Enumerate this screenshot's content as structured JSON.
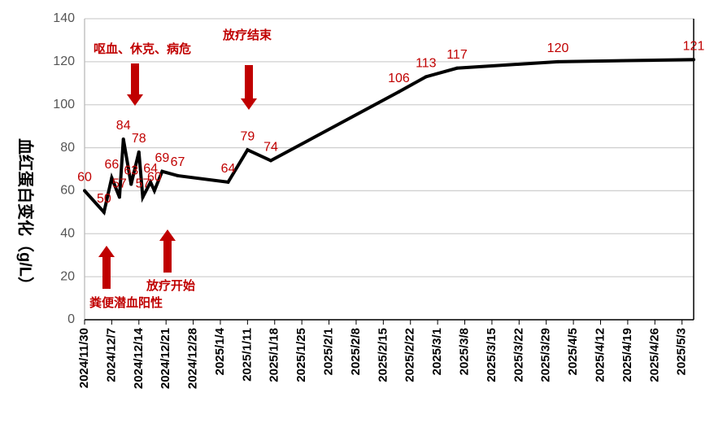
{
  "chart_data": {
    "type": "line",
    "y_label": "血红蛋白变化（g/L）",
    "x": [
      "2024/11/30",
      "2024/12/5",
      "2024/12/7",
      "2024/12/9",
      "2024/12/10",
      "2024/12/12",
      "2024/12/14",
      "2024/12/15",
      "2024/12/17",
      "2024/12/18",
      "2024/12/20",
      "2024/12/24",
      "2025/1/6",
      "2025/1/11",
      "2025/1/17",
      "2025/2/19",
      "2025/2/26",
      "2025/3/6",
      "2025/4/1",
      "2025/5/6"
    ],
    "values": [
      60,
      50,
      66,
      57,
      84,
      63,
      78,
      57,
      64,
      60,
      69,
      67,
      64,
      79,
      74,
      106,
      113,
      117,
      120,
      121
    ],
    "color": "#000000",
    "label_color": "#c00000",
    "xlim": [
      "2024/11/30",
      "2025/5/6"
    ],
    "xticks": [
      "2024/11/30",
      "2024/12/7",
      "2024/12/14",
      "2024/12/21",
      "2024/12/28",
      "2025/1/4",
      "2025/1/11",
      "2025/1/18",
      "2025/1/25",
      "2025/2/1",
      "2025/2/8",
      "2025/2/15",
      "2025/2/22",
      "2025/3/1",
      "2025/3/8",
      "2025/3/15",
      "2025/3/22",
      "2025/3/29",
      "2025/4/5",
      "2025/4/12",
      "2025/4/19",
      "2025/4/26",
      "2025/5/3"
    ],
    "ylim": [
      0,
      140
    ],
    "yticks": [
      0,
      20,
      40,
      60,
      80,
      100,
      120,
      140
    ],
    "grid": true,
    "annotations": [
      "呕血、休克、病危",
      "放疗结束",
      "粪便潜血阳性",
      "放疗开始"
    ]
  }
}
